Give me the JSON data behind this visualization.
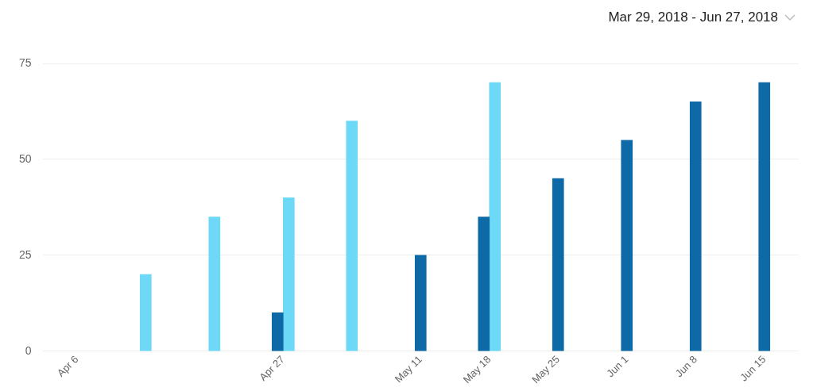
{
  "chart_data": {
    "type": "bar",
    "title": "Mar 29, 2018 - Jun 27, 2018",
    "categories": [
      "Apr 6",
      null,
      null,
      "Apr 27",
      null,
      "May 11",
      "May 18",
      "May 25",
      "Jun 1",
      "Jun 8",
      "Jun 15"
    ],
    "series": [
      {
        "color": "#0e6aa6",
        "values": [
          null,
          null,
          null,
          10,
          null,
          25,
          35,
          45,
          55,
          65,
          70
        ]
      },
      {
        "color": "#6dd9f7",
        "values": [
          null,
          20,
          35,
          40,
          60,
          null,
          70,
          null,
          null,
          null,
          null
        ]
      }
    ],
    "ylim": [
      0,
      75
    ],
    "yticks": [
      0,
      25,
      50,
      75
    ],
    "grid": "y",
    "legend": false
  }
}
